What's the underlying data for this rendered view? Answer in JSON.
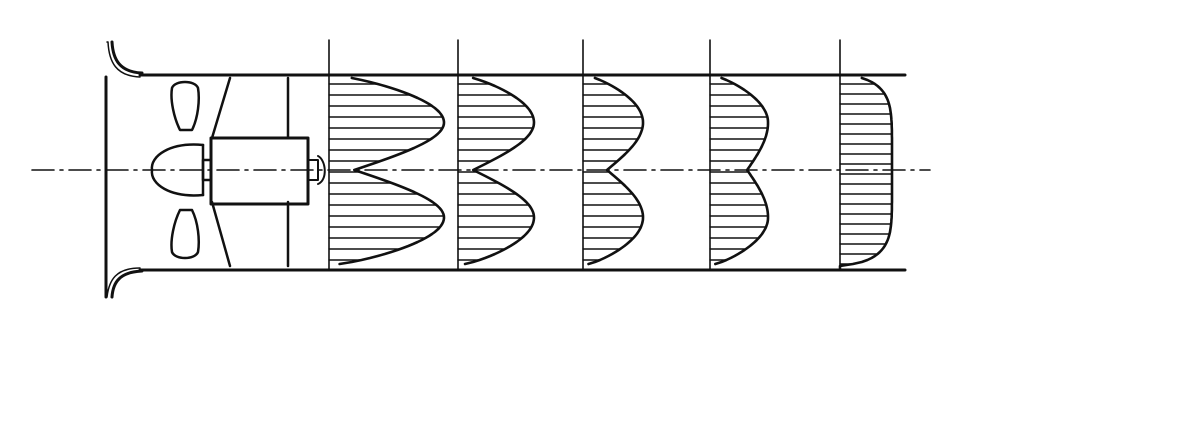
{
  "figure": {
    "stroke_color": "#111111",
    "background_color": "#ffffff",
    "components": [
      "inlet-bellmouth",
      "propeller-fan",
      "motor-housing",
      "duct-walls",
      "centerline"
    ],
    "velocity_profiles": [
      {
        "shape": "double-peak-deep"
      },
      {
        "shape": "double-peak"
      },
      {
        "shape": "double-peak-shallow"
      },
      {
        "shape": "slight-dip"
      },
      {
        "shape": "uniform"
      }
    ]
  }
}
